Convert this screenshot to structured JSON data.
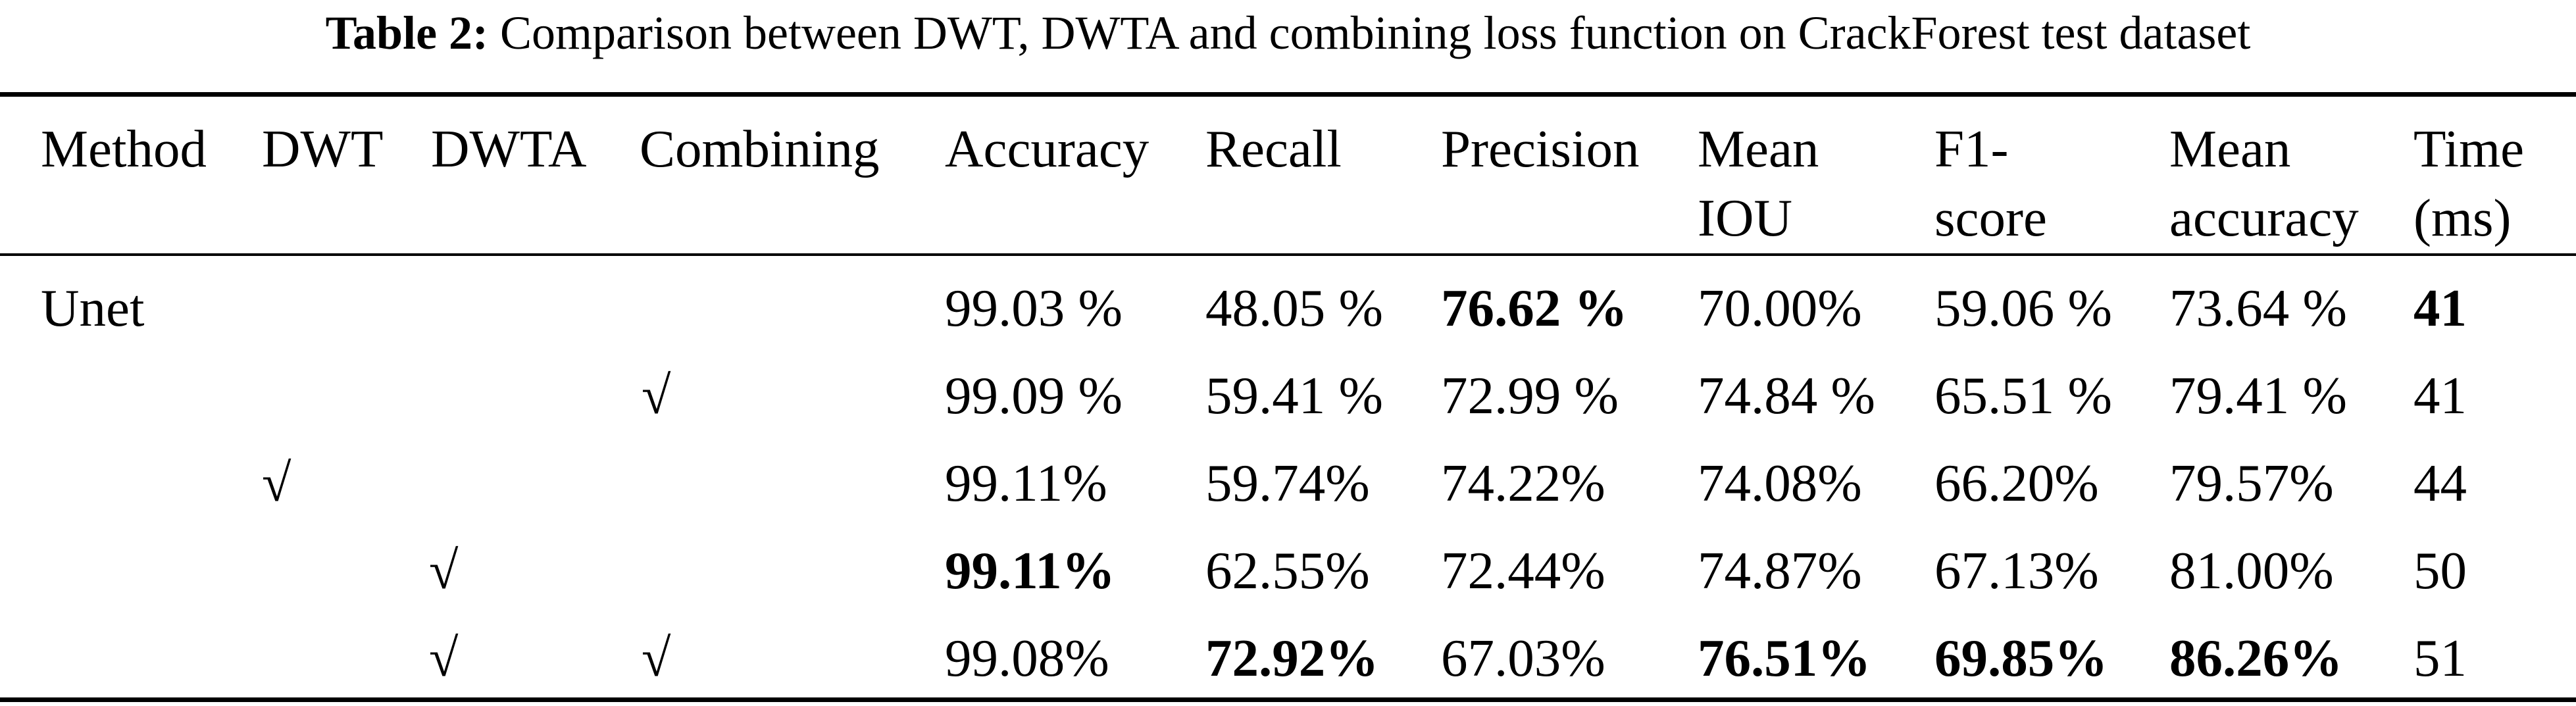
{
  "caption": {
    "label": "Table 2:",
    "text": " Comparison between DWT, DWTA and combining loss function on CrackForest test dataset"
  },
  "headers": {
    "method": "Method",
    "dwt": "DWT",
    "dwta": "DWTA",
    "combining": "Combining",
    "accuracy": "Accuracy",
    "recall": "Recall",
    "precision": "Precision",
    "mean_iou_1": "Mean",
    "mean_iou_2": "IOU",
    "f1_1": "F1-",
    "f1_2": "score",
    "mean_acc_1": "Mean",
    "mean_acc_2": "accuracy",
    "time_1": "Time",
    "time_2": "(ms)"
  },
  "rows": [
    {
      "method": "Unet",
      "dwt": "",
      "dwta": "",
      "combining": "",
      "accuracy": "99.03 %",
      "recall": "48.05 %",
      "precision": "76.62 %",
      "mean_iou": "70.00%",
      "f1": "59.06 %",
      "mean_accuracy": "73.64 %",
      "time": "41"
    },
    {
      "method": "",
      "dwt": "",
      "dwta": "",
      "combining": "√",
      "accuracy": "99.09 %",
      "recall": "59.41 %",
      "precision": "72.99 %",
      "mean_iou": "74.84 %",
      "f1": "65.51 %",
      "mean_accuracy": "79.41 %",
      "time": "41"
    },
    {
      "method": "",
      "dwt": "√",
      "dwta": "",
      "combining": "",
      "accuracy": "99.11%",
      "recall": "59.74%",
      "precision": "74.22%",
      "mean_iou": "74.08%",
      "f1": "66.20%",
      "mean_accuracy": "79.57%",
      "time": "44"
    },
    {
      "method": "",
      "dwt": "",
      "dwta": "√",
      "combining": "",
      "accuracy": "99.11%",
      "recall": "62.55%",
      "precision": "72.44%",
      "mean_iou": "74.87%",
      "f1": "67.13%",
      "mean_accuracy": "81.00%",
      "time": "50"
    },
    {
      "method": "",
      "dwt": "",
      "dwta": "√",
      "combining": "√",
      "accuracy": "99.08%",
      "recall": "72.92%",
      "precision": "67.03%",
      "mean_iou": "76.51%",
      "f1": "69.85%",
      "mean_accuracy": "86.26%",
      "time": "51"
    }
  ]
}
